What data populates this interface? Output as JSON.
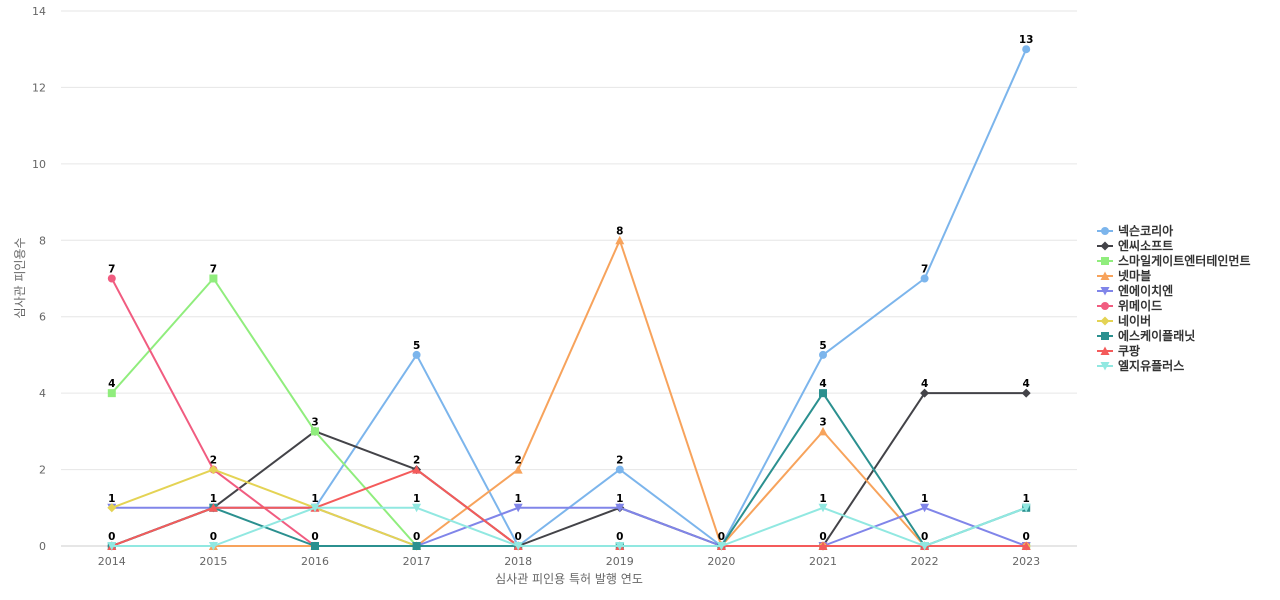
{
  "chart_data": {
    "type": "line",
    "xlabel": "심사관 피인용 특허 발행 연도",
    "ylabel": "심사관 피인용수",
    "categories": [
      "2014",
      "2015",
      "2016",
      "2017",
      "2018",
      "2019",
      "2020",
      "2021",
      "2022",
      "2023"
    ],
    "ylim": [
      0,
      14
    ],
    "yticks": [
      0,
      2,
      4,
      6,
      8,
      10,
      12,
      14
    ],
    "grid": true,
    "legend_position": "right",
    "series": [
      {
        "name": "넥슨코리아",
        "color": "#7cb5ec",
        "marker": "circle",
        "values": [
          0,
          1,
          1,
          5,
          0,
          2,
          0,
          5,
          7,
          13
        ]
      },
      {
        "name": "엔씨소프트",
        "color": "#434348",
        "marker": "diamond",
        "values": [
          0,
          1,
          3,
          2,
          0,
          1,
          0,
          0,
          4,
          4
        ]
      },
      {
        "name": "스마일게이트엔터테인먼트",
        "color": "#90ed7d",
        "marker": "square",
        "values": [
          4,
          7,
          3,
          0,
          0,
          0,
          0,
          0,
          0,
          0
        ]
      },
      {
        "name": "넷마블",
        "color": "#f7a35c",
        "marker": "triangle",
        "values": [
          0,
          0,
          0,
          0,
          2,
          8,
          0,
          3,
          0,
          0
        ]
      },
      {
        "name": "엔에이치엔",
        "color": "#8085e9",
        "marker": "triangle-down",
        "values": [
          1,
          1,
          1,
          0,
          1,
          1,
          0,
          0,
          1,
          0
        ]
      },
      {
        "name": "위메이드",
        "color": "#f15c80",
        "marker": "circle",
        "values": [
          7,
          2,
          0,
          0,
          0,
          0,
          0,
          0,
          0,
          0
        ]
      },
      {
        "name": "네이버",
        "color": "#e4d354",
        "marker": "diamond",
        "values": [
          1,
          2,
          1,
          0,
          0,
          0,
          0,
          0,
          0,
          0
        ]
      },
      {
        "name": "에스케이플래닛",
        "color": "#2b908f",
        "marker": "square",
        "values": [
          0,
          1,
          0,
          0,
          0,
          0,
          0,
          4,
          0,
          1
        ]
      },
      {
        "name": "쿠팡",
        "color": "#f45b5b",
        "marker": "triangle",
        "values": [
          0,
          1,
          1,
          2,
          0,
          0,
          0,
          0,
          0,
          0
        ]
      },
      {
        "name": "엘지유플러스",
        "color": "#91e8e1",
        "marker": "triangle-down",
        "values": [
          0,
          0,
          1,
          1,
          0,
          0,
          0,
          1,
          0,
          1
        ]
      }
    ],
    "data_labels": [
      {
        "x": "2014",
        "value": 7
      },
      {
        "x": "2014",
        "value": 4
      },
      {
        "x": "2014",
        "value": 1
      },
      {
        "x": "2014",
        "value": 0
      },
      {
        "x": "2015",
        "value": 7
      },
      {
        "x": "2015",
        "value": 2
      },
      {
        "x": "2015",
        "value": 1
      },
      {
        "x": "2015",
        "value": 0
      },
      {
        "x": "2016",
        "value": 3
      },
      {
        "x": "2016",
        "value": 1
      },
      {
        "x": "2016",
        "value": 0
      },
      {
        "x": "2017",
        "value": 5
      },
      {
        "x": "2017",
        "value": 2
      },
      {
        "x": "2017",
        "value": 1
      },
      {
        "x": "2017",
        "value": 0
      },
      {
        "x": "2018",
        "value": 2
      },
      {
        "x": "2018",
        "value": 1
      },
      {
        "x": "2018",
        "value": 0
      },
      {
        "x": "2019",
        "value": 8
      },
      {
        "x": "2019",
        "value": 2
      },
      {
        "x": "2019",
        "value": 1
      },
      {
        "x": "2019",
        "value": 0
      },
      {
        "x": "2020",
        "value": 0
      },
      {
        "x": "2021",
        "value": 5
      },
      {
        "x": "2021",
        "value": 4
      },
      {
        "x": "2021",
        "value": 3
      },
      {
        "x": "2021",
        "value": 1
      },
      {
        "x": "2021",
        "value": 0
      },
      {
        "x": "2022",
        "value": 7
      },
      {
        "x": "2022",
        "value": 4
      },
      {
        "x": "2022",
        "value": 1
      },
      {
        "x": "2022",
        "value": 0
      },
      {
        "x": "2023",
        "value": 13
      },
      {
        "x": "2023",
        "value": 4
      },
      {
        "x": "2023",
        "value": 1
      },
      {
        "x": "2023",
        "value": 0
      }
    ]
  }
}
